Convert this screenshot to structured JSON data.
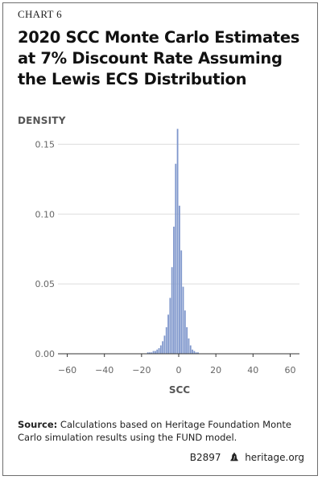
{
  "header": {
    "chart_label": "CHART 6",
    "title": "2020 SCC Monte Carlo Estimates at 7% Discount Rate Assuming the Lewis ECS Distribution"
  },
  "source": {
    "label": "Source:",
    "text": "Calculations based on Heritage Foundation Monte Carlo simulation results using the FUND model."
  },
  "footer": {
    "code": "B2897",
    "site": "heritage.org",
    "icon": "liberty-bell-icon"
  },
  "colors": {
    "bar": "#7f97cc",
    "grid": "#dddddd",
    "axis": "#333333"
  },
  "chart_data": {
    "type": "bar",
    "title": "2020 SCC Monte Carlo Estimates at 7% Discount Rate Assuming the Lewis ECS Distribution",
    "xlabel": "SCC",
    "ylabel": "DENSITY",
    "xlim": [
      -65,
      65
    ],
    "ylim": [
      0,
      0.16
    ],
    "xticks": [
      -60,
      -40,
      -20,
      0,
      20,
      40,
      60
    ],
    "xtick_labels": [
      "−60",
      "−40",
      "−20",
      "0",
      "20",
      "40",
      "60"
    ],
    "yticks": [
      0.0,
      0.05,
      0.1,
      0.15
    ],
    "ytick_labels": [
      "0.00",
      "0.05",
      "0.10",
      "0.15"
    ],
    "grid": "horizontal",
    "bin_width": 1,
    "bins": [
      {
        "x0": -17,
        "value": 0.001
      },
      {
        "x0": -16,
        "value": 0.001
      },
      {
        "x0": -15,
        "value": 0.001
      },
      {
        "x0": -14,
        "value": 0.002
      },
      {
        "x0": -13,
        "value": 0.002
      },
      {
        "x0": -12,
        "value": 0.003
      },
      {
        "x0": -11,
        "value": 0.004
      },
      {
        "x0": -10,
        "value": 0.006
      },
      {
        "x0": -9,
        "value": 0.009
      },
      {
        "x0": -8,
        "value": 0.013
      },
      {
        "x0": -7,
        "value": 0.019
      },
      {
        "x0": -6,
        "value": 0.028
      },
      {
        "x0": -5,
        "value": 0.04
      },
      {
        "x0": -4,
        "value": 0.062
      },
      {
        "x0": -3,
        "value": 0.091
      },
      {
        "x0": -2,
        "value": 0.136
      },
      {
        "x0": -1,
        "value": 0.161
      },
      {
        "x0": 0,
        "value": 0.106
      },
      {
        "x0": 1,
        "value": 0.074
      },
      {
        "x0": 2,
        "value": 0.048
      },
      {
        "x0": 3,
        "value": 0.031
      },
      {
        "x0": 4,
        "value": 0.019
      },
      {
        "x0": 5,
        "value": 0.011
      },
      {
        "x0": 6,
        "value": 0.006
      },
      {
        "x0": 7,
        "value": 0.003
      },
      {
        "x0": 8,
        "value": 0.002
      },
      {
        "x0": 9,
        "value": 0.001
      },
      {
        "x0": 10,
        "value": 0.001
      }
    ]
  }
}
